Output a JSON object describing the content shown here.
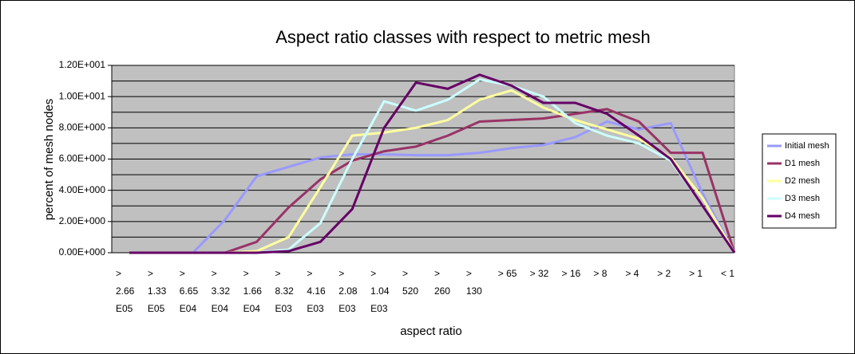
{
  "chart_data": {
    "type": "line",
    "title": "Aspect ratio classes with respect to metric mesh",
    "xlabel": "aspect ratio",
    "ylabel": "percent of mesh nodes",
    "categories": [
      ">\n2.66\nE05",
      ">\n1.33\nE05",
      ">\n6.65\nE04",
      ">\n3.32\nE04",
      ">\n1.66\nE04",
      ">\n8.32\nE03",
      ">\n4.16\nE03",
      ">\n2.08\nE03",
      ">\n1.04\nE03",
      ">\n520",
      ">\n260",
      ">\n130",
      "> 65",
      "> 32",
      "> 16",
      "> 8",
      "> 4",
      "> 2",
      "> 1",
      "< 1"
    ],
    "series": [
      {
        "name": "Initial mesh",
        "color": "#9999ff",
        "values": [
          0,
          0,
          0,
          2.1,
          4.9,
          5.5,
          6.1,
          6.3,
          6.3,
          6.25,
          6.25,
          6.4,
          6.7,
          6.9,
          7.4,
          8.4,
          7.9,
          8.3,
          3.8,
          0
        ]
      },
      {
        "name": "D1 mesh",
        "color": "#993366",
        "values": [
          0,
          0,
          0,
          0,
          0.7,
          2.9,
          4.7,
          5.9,
          6.5,
          6.8,
          7.5,
          8.4,
          8.5,
          8.6,
          8.9,
          9.2,
          8.4,
          6.4,
          6.4,
          0
        ]
      },
      {
        "name": "D2 mesh",
        "color": "#ffffa0",
        "values": [
          0,
          0,
          0,
          0,
          0.1,
          1.0,
          4.2,
          7.5,
          7.7,
          8.0,
          8.5,
          9.8,
          10.4,
          9.3,
          8.5,
          7.9,
          7.3,
          6.1,
          3.5,
          0
        ]
      },
      {
        "name": "D3 mesh",
        "color": "#ccffff",
        "values": [
          0,
          0,
          0,
          0,
          0,
          0.2,
          1.9,
          6.0,
          9.7,
          9.1,
          9.8,
          11.1,
          10.7,
          10.0,
          8.3,
          7.5,
          7.0,
          5.9,
          3.0,
          0
        ]
      },
      {
        "name": "D4 mesh",
        "color": "#660066",
        "values": [
          0,
          0,
          0,
          0,
          0,
          0.1,
          0.7,
          2.8,
          8.0,
          10.9,
          10.5,
          11.4,
          10.7,
          9.6,
          9.6,
          8.9,
          7.5,
          6.0,
          3.0,
          0
        ]
      }
    ],
    "ylim": [
      0,
      12
    ],
    "yticks": [
      {
        "value": 0,
        "label": "0.00E+000"
      },
      {
        "value": 2,
        "label": "2.00E+000"
      },
      {
        "value": 4,
        "label": "4.00E+000"
      },
      {
        "value": 6,
        "label": "6.00E+000"
      },
      {
        "value": 8,
        "label": "8.00E+000"
      },
      {
        "value": 10,
        "label": "1.00E+001"
      },
      {
        "value": 12,
        "label": "1.20E+001"
      }
    ],
    "minor_yticks": [
      1,
      3,
      5,
      7,
      9,
      11
    ],
    "grid": true,
    "plot_background": "#c0c0c0",
    "legend": "right"
  }
}
